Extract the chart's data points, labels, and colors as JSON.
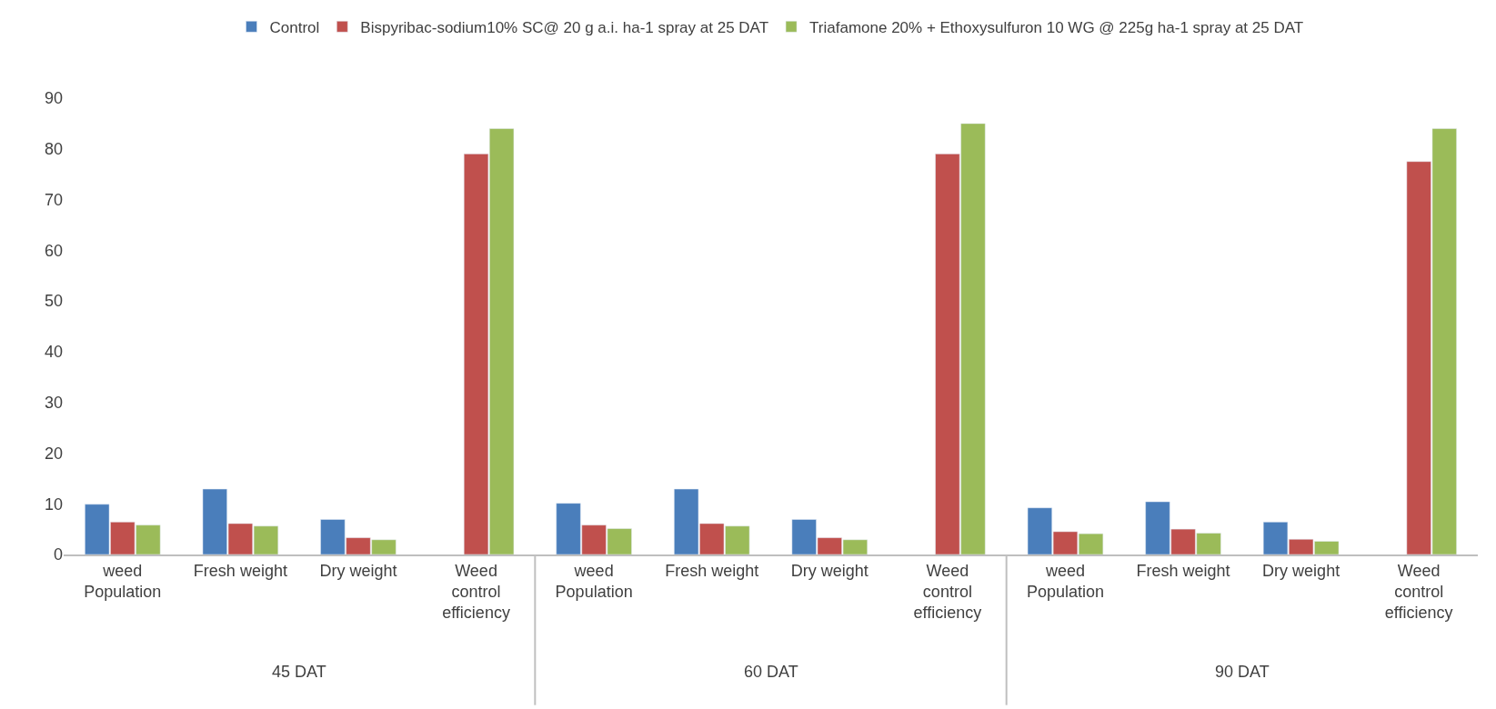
{
  "chart_data": {
    "type": "bar",
    "categories": [
      "weed Population",
      "Fresh weight",
      "Dry weight",
      "Weed control efficiency",
      "weed Population",
      "Fresh weight",
      "Dry weight",
      "Weed control efficiency",
      "weed Population",
      "Fresh weight",
      "Dry weight",
      "Weed control efficiency"
    ],
    "series": [
      {
        "name": "Control",
        "color": "#4a7ebb",
        "values": [
          9.9,
          12.9,
          6.9,
          null,
          10.1,
          12.9,
          6.9,
          null,
          9.2,
          10.4,
          6.4,
          null
        ]
      },
      {
        "name": "Bispyribac-sodium10% SC@ 20 g a.i. ha-1 spray at 25 DAT",
        "color": "#c0504d",
        "values": [
          6.4,
          6.1,
          3.3,
          79,
          5.8,
          6.1,
          3.3,
          79,
          4.5,
          5.0,
          3.0,
          77.5
        ]
      },
      {
        "name": "Triafamone 20% + Ethoxysulfuron 10 WG @ 225g ha-1 spray at 25 DAT",
        "color": "#9bbb59",
        "values": [
          5.8,
          5.6,
          2.9,
          84,
          5.1,
          5.6,
          2.9,
          85,
          4.1,
          4.2,
          2.6,
          84
        ]
      }
    ],
    "annotations": [
      "45 DAT",
      "60 DAT",
      "90 DAT"
    ],
    "ylim": [
      0,
      90
    ],
    "yticks": [
      0,
      10,
      20,
      30,
      40,
      50,
      60,
      70,
      80,
      90
    ],
    "grid": false,
    "legend": "top"
  }
}
